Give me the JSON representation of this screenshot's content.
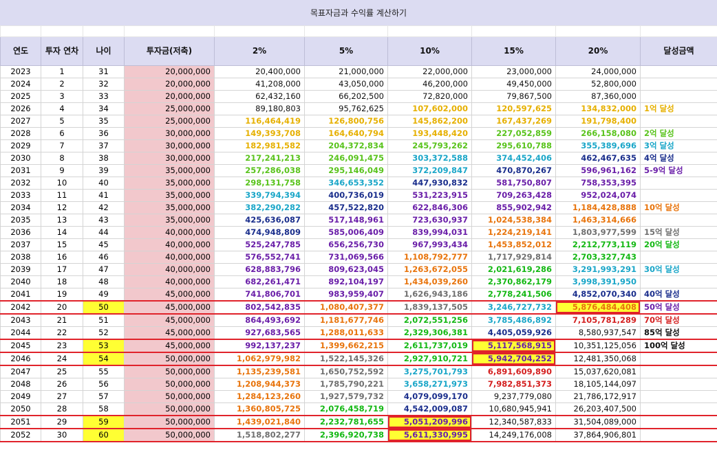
{
  "title": "목표자금과 수익률 계산하기",
  "headers": [
    "연도",
    "투자 연차",
    "나이",
    "투자금(저축)",
    "2%",
    "5%",
    "10%",
    "15%",
    "20%",
    "달성금액"
  ],
  "colors": {
    "black": "#111111",
    "gray": "#707070",
    "gold": "#e6b000",
    "lime": "#59c31c",
    "green": "#14b814",
    "teal": "#1aa6c8",
    "navy": "#1a2e8c",
    "purple": "#6a1ea8",
    "orange": "#e8740c",
    "red": "#d42020"
  },
  "rows": [
    {
      "year": "2023",
      "n": "1",
      "age": "31",
      "inv": "20,000,000",
      "v": [
        "20,400,000",
        "21,000,000",
        "22,000,000",
        "23,000,000",
        "24,000,000"
      ],
      "c": [
        "black",
        "black",
        "black",
        "black",
        "black"
      ],
      "ach": "",
      "achc": "black"
    },
    {
      "year": "2024",
      "n": "2",
      "age": "32",
      "inv": "20,000,000",
      "v": [
        "41,208,000",
        "43,050,000",
        "46,200,000",
        "49,450,000",
        "52,800,000"
      ],
      "c": [
        "black",
        "black",
        "black",
        "black",
        "black"
      ],
      "ach": "",
      "achc": "black"
    },
    {
      "year": "2025",
      "n": "3",
      "age": "33",
      "inv": "20,000,000",
      "v": [
        "62,432,160",
        "66,202,500",
        "72,820,000",
        "79,867,500",
        "87,360,000"
      ],
      "c": [
        "black",
        "black",
        "black",
        "black",
        "black"
      ],
      "ach": "",
      "achc": "black"
    },
    {
      "year": "2026",
      "n": "4",
      "age": "34",
      "inv": "25,000,000",
      "v": [
        "89,180,803",
        "95,762,625",
        "107,602,000",
        "120,597,625",
        "134,832,000"
      ],
      "c": [
        "black",
        "black",
        "gold",
        "gold",
        "gold"
      ],
      "ach": "1억 달성",
      "achc": "gold"
    },
    {
      "year": "2027",
      "n": "5",
      "age": "35",
      "inv": "25,000,000",
      "v": [
        "116,464,419",
        "126,800,756",
        "145,862,200",
        "167,437,269",
        "191,798,400"
      ],
      "c": [
        "gold",
        "gold",
        "gold",
        "gold",
        "gold"
      ],
      "ach": "",
      "achc": "black"
    },
    {
      "year": "2028",
      "n": "6",
      "age": "36",
      "inv": "30,000,000",
      "v": [
        "149,393,708",
        "164,640,794",
        "193,448,420",
        "227,052,859",
        "266,158,080"
      ],
      "c": [
        "gold",
        "gold",
        "gold",
        "lime",
        "lime"
      ],
      "ach": "2억 달성",
      "achc": "lime"
    },
    {
      "year": "2029",
      "n": "7",
      "age": "37",
      "inv": "30,000,000",
      "v": [
        "182,981,582",
        "204,372,834",
        "245,793,262",
        "295,610,788",
        "355,389,696"
      ],
      "c": [
        "gold",
        "lime",
        "lime",
        "lime",
        "teal"
      ],
      "ach": "3억 달성",
      "achc": "teal"
    },
    {
      "year": "2030",
      "n": "8",
      "age": "38",
      "inv": "30,000,000",
      "v": [
        "217,241,213",
        "246,091,475",
        "303,372,588",
        "374,452,406",
        "462,467,635"
      ],
      "c": [
        "lime",
        "lime",
        "teal",
        "teal",
        "navy"
      ],
      "ach": "4억 달성",
      "achc": "navy"
    },
    {
      "year": "2031",
      "n": "9",
      "age": "39",
      "inv": "35,000,000",
      "v": [
        "257,286,038",
        "295,146,049",
        "372,209,847",
        "470,870,267",
        "596,961,162"
      ],
      "c": [
        "lime",
        "lime",
        "teal",
        "navy",
        "purple"
      ],
      "ach": "5-9억 달성",
      "achc": "purple"
    },
    {
      "year": "2032",
      "n": "10",
      "age": "40",
      "inv": "35,000,000",
      "v": [
        "298,131,758",
        "346,653,352",
        "447,930,832",
        "581,750,807",
        "758,353,395"
      ],
      "c": [
        "lime",
        "teal",
        "navy",
        "purple",
        "purple"
      ],
      "ach": "",
      "achc": "black"
    },
    {
      "year": "2033",
      "n": "11",
      "age": "41",
      "inv": "35,000,000",
      "v": [
        "339,794,394",
        "400,736,019",
        "531,223,915",
        "709,263,428",
        "952,024,074"
      ],
      "c": [
        "teal",
        "navy",
        "purple",
        "purple",
        "purple"
      ],
      "ach": "",
      "achc": "black"
    },
    {
      "year": "2034",
      "n": "12",
      "age": "42",
      "inv": "35,000,000",
      "v": [
        "382,290,282",
        "457,522,820",
        "622,846,306",
        "855,902,942",
        "1,184,428,888"
      ],
      "c": [
        "teal",
        "navy",
        "purple",
        "purple",
        "orange"
      ],
      "ach": "10억 달성",
      "achc": "orange"
    },
    {
      "year": "2035",
      "n": "13",
      "age": "43",
      "inv": "35,000,000",
      "v": [
        "425,636,087",
        "517,148,961",
        "723,630,937",
        "1,024,538,384",
        "1,463,314,666"
      ],
      "c": [
        "navy",
        "purple",
        "purple",
        "orange",
        "orange"
      ],
      "ach": "",
      "achc": "black"
    },
    {
      "year": "2036",
      "n": "14",
      "age": "44",
      "inv": "40,000,000",
      "v": [
        "474,948,809",
        "585,006,409",
        "839,994,031",
        "1,224,219,141",
        "1,803,977,599"
      ],
      "c": [
        "navy",
        "purple",
        "purple",
        "orange",
        "gray"
      ],
      "ach": "15억 달성",
      "achc": "gray"
    },
    {
      "year": "2037",
      "n": "15",
      "age": "45",
      "inv": "40,000,000",
      "v": [
        "525,247,785",
        "656,256,730",
        "967,993,434",
        "1,453,852,012",
        "2,212,773,119"
      ],
      "c": [
        "purple",
        "purple",
        "purple",
        "orange",
        "green"
      ],
      "ach": "20억 달성",
      "achc": "green"
    },
    {
      "year": "2038",
      "n": "16",
      "age": "46",
      "inv": "40,000,000",
      "v": [
        "576,552,741",
        "731,069,566",
        "1,108,792,777",
        "1,717,929,814",
        "2,703,327,743"
      ],
      "c": [
        "purple",
        "purple",
        "orange",
        "gray",
        "green"
      ],
      "ach": "",
      "achc": "black"
    },
    {
      "year": "2039",
      "n": "17",
      "age": "47",
      "inv": "40,000,000",
      "v": [
        "628,883,796",
        "809,623,045",
        "1,263,672,055",
        "2,021,619,286",
        "3,291,993,291"
      ],
      "c": [
        "purple",
        "purple",
        "orange",
        "green",
        "teal"
      ],
      "ach": "30억 달성",
      "achc": "teal"
    },
    {
      "year": "2040",
      "n": "18",
      "age": "48",
      "inv": "40,000,000",
      "v": [
        "682,261,471",
        "892,104,197",
        "1,434,039,260",
        "2,370,862,179",
        "3,998,391,950"
      ],
      "c": [
        "purple",
        "purple",
        "orange",
        "green",
        "teal"
      ],
      "ach": "",
      "achc": "black"
    },
    {
      "year": "2041",
      "n": "19",
      "age": "49",
      "inv": "45,000,000",
      "v": [
        "741,806,701",
        "983,959,407",
        "1,626,943,186",
        "2,778,241,506",
        "4,852,070,340"
      ],
      "c": [
        "purple",
        "purple",
        "gray",
        "green",
        "navy"
      ],
      "ach": "40억 달성",
      "achc": "navy"
    },
    {
      "year": "2042",
      "n": "20",
      "age": "50",
      "inv": "45,000,000",
      "v": [
        "802,542,835",
        "1,080,407,377",
        "1,839,137,505",
        "3,246,727,732",
        "5,876,484,408"
      ],
      "c": [
        "purple",
        "orange",
        "gray",
        "teal",
        "orange"
      ],
      "ach": "50억 달성",
      "achc": "purple"
    },
    {
      "year": "2043",
      "n": "21",
      "age": "51",
      "inv": "45,000,000",
      "v": [
        "864,493,692",
        "1,181,677,746",
        "2,072,551,256",
        "3,785,486,892",
        "7,105,781,289"
      ],
      "c": [
        "purple",
        "orange",
        "green",
        "teal",
        "red"
      ],
      "ach": "70억 달성",
      "achc": "red"
    },
    {
      "year": "2044",
      "n": "22",
      "age": "52",
      "inv": "45,000,000",
      "v": [
        "927,683,565",
        "1,288,011,633",
        "2,329,306,381",
        "4,405,059,926",
        "8,580,937,547"
      ],
      "c": [
        "purple",
        "orange",
        "green",
        "navy",
        "black"
      ],
      "ach": "85억 달성",
      "achc": "black"
    },
    {
      "year": "2045",
      "n": "23",
      "age": "53",
      "inv": "45,000,000",
      "v": [
        "992,137,237",
        "1,399,662,215",
        "2,611,737,019",
        "5,117,568,915",
        "10,351,125,056"
      ],
      "c": [
        "purple",
        "orange",
        "green",
        "purple",
        "black"
      ],
      "ach": "100억 달성",
      "achc": "black"
    },
    {
      "year": "2046",
      "n": "24",
      "age": "54",
      "inv": "50,000,000",
      "v": [
        "1,062,979,982",
        "1,522,145,326",
        "2,927,910,721",
        "5,942,704,252",
        "12,481,350,068"
      ],
      "c": [
        "orange",
        "gray",
        "green",
        "purple",
        "black"
      ],
      "ach": "",
      "achc": "black"
    },
    {
      "year": "2047",
      "n": "25",
      "age": "55",
      "inv": "50,000,000",
      "v": [
        "1,135,239,581",
        "1,650,752,592",
        "3,275,701,793",
        "6,891,609,890",
        "15,037,620,081"
      ],
      "c": [
        "orange",
        "gray",
        "teal",
        "red",
        "black"
      ],
      "ach": "",
      "achc": "black"
    },
    {
      "year": "2048",
      "n": "26",
      "age": "56",
      "inv": "50,000,000",
      "v": [
        "1,208,944,373",
        "1,785,790,221",
        "3,658,271,973",
        "7,982,851,373",
        "18,105,144,097"
      ],
      "c": [
        "orange",
        "gray",
        "teal",
        "red",
        "black"
      ],
      "ach": "",
      "achc": "black"
    },
    {
      "year": "2049",
      "n": "27",
      "age": "57",
      "inv": "50,000,000",
      "v": [
        "1,284,123,260",
        "1,927,579,732",
        "4,079,099,170",
        "9,237,779,080",
        "21,786,172,917"
      ],
      "c": [
        "orange",
        "gray",
        "navy",
        "black",
        "black"
      ],
      "ach": "",
      "achc": "black"
    },
    {
      "year": "2050",
      "n": "28",
      "age": "58",
      "inv": "50,000,000",
      "v": [
        "1,360,805,725",
        "2,076,458,719",
        "4,542,009,087",
        "10,680,945,941",
        "26,203,407,500"
      ],
      "c": [
        "orange",
        "green",
        "navy",
        "black",
        "black"
      ],
      "ach": "",
      "achc": "black"
    },
    {
      "year": "2051",
      "n": "29",
      "age": "59",
      "inv": "50,000,000",
      "v": [
        "1,439,021,840",
        "2,232,781,655",
        "5,051,209,996",
        "12,340,587,833",
        "31,504,089,000"
      ],
      "c": [
        "orange",
        "green",
        "purple",
        "black",
        "black"
      ],
      "ach": "",
      "achc": "black"
    },
    {
      "year": "2052",
      "n": "30",
      "age": "60",
      "inv": "50,000,000",
      "v": [
        "1,518,802,277",
        "2,396,920,738",
        "5,611,330,995",
        "14,249,176,008",
        "37,864,906,801"
      ],
      "c": [
        "gray",
        "green",
        "purple",
        "black",
        "black"
      ],
      "ach": "",
      "achc": "black"
    }
  ],
  "highlight_rows": [
    "2042",
    "2045",
    "2046",
    "2051",
    "2052"
  ],
  "yellow_age_rows": [
    "2042",
    "2045",
    "2046",
    "2051",
    "2052"
  ],
  "yellow_cells": [
    {
      "year": "2042",
      "col": 4
    },
    {
      "year": "2045",
      "col": 3
    },
    {
      "year": "2046",
      "col": 3
    },
    {
      "year": "2051",
      "col": 2
    },
    {
      "year": "2052",
      "col": 2
    }
  ]
}
